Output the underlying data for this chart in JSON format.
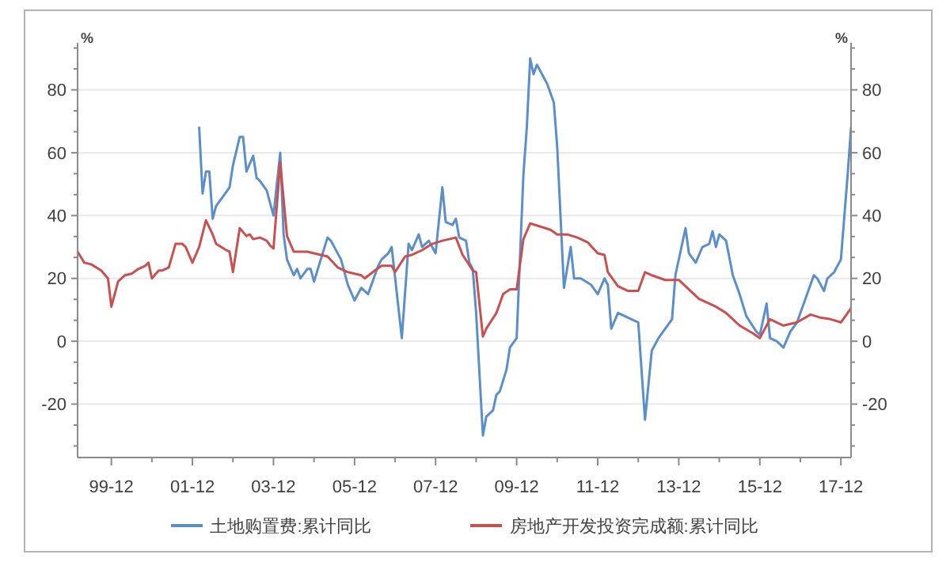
{
  "chart_data": {
    "type": "line",
    "ylabel": "%",
    "y2label": "%",
    "xlim": [
      "1999-02",
      "2018-03"
    ],
    "xticks": [
      {
        "value": "1999-12",
        "label": "99-12"
      },
      {
        "value": "2000-12",
        "label": null
      },
      {
        "value": "2001-12",
        "label": "01-12"
      },
      {
        "value": "2002-12",
        "label": null
      },
      {
        "value": "2003-12",
        "label": "03-12"
      },
      {
        "value": "2004-12",
        "label": null
      },
      {
        "value": "2005-12",
        "label": "05-12"
      },
      {
        "value": "2006-12",
        "label": null
      },
      {
        "value": "2007-12",
        "label": "07-12"
      },
      {
        "value": "2008-12",
        "label": null
      },
      {
        "value": "2009-12",
        "label": "09-12"
      },
      {
        "value": "2010-12",
        "label": null
      },
      {
        "value": "2011-12",
        "label": "11-12"
      },
      {
        "value": "2012-12",
        "label": null
      },
      {
        "value": "2013-12",
        "label": "13-12"
      },
      {
        "value": "2014-12",
        "label": null
      },
      {
        "value": "2015-12",
        "label": "15-12"
      },
      {
        "value": "2016-12",
        "label": null
      },
      {
        "value": "2017-12",
        "label": "17-12"
      }
    ],
    "ylim": [
      -37,
      95
    ],
    "yticks": [
      {
        "value": -33.33,
        "label": null
      },
      {
        "value": -26.67,
        "label": null
      },
      -20,
      {
        "value": -13.33,
        "label": null
      },
      {
        "value": -6.67,
        "label": null
      },
      0,
      {
        "value": 6.67,
        "label": null
      },
      {
        "value": 13.33,
        "label": null
      },
      20,
      {
        "value": 26.67,
        "label": null
      },
      {
        "value": 33.33,
        "label": null
      },
      40,
      {
        "value": 46.67,
        "label": null
      },
      {
        "value": 53.33,
        "label": null
      },
      60,
      {
        "value": 66.67,
        "label": null
      },
      {
        "value": 73.33,
        "label": null
      },
      80,
      {
        "value": 86.67,
        "label": null
      },
      {
        "value": 93.33,
        "label": null
      }
    ],
    "y2lim": [
      -37,
      95
    ],
    "y2ticks": [
      {
        "value": -33.33,
        "label": null
      },
      {
        "value": -26.67,
        "label": null
      },
      -20,
      {
        "value": -13.33,
        "label": null
      },
      {
        "value": -6.67,
        "label": null
      },
      0,
      {
        "value": 6.67,
        "label": null
      },
      {
        "value": 13.33,
        "label": null
      },
      20,
      {
        "value": 26.67,
        "label": null
      },
      {
        "value": 33.33,
        "label": null
      },
      40,
      {
        "value": 46.67,
        "label": null
      },
      {
        "value": 53.33,
        "label": null
      },
      60,
      {
        "value": 66.67,
        "label": null
      },
      {
        "value": 73.33,
        "label": null
      },
      80,
      {
        "value": 86.67,
        "label": null
      },
      {
        "value": 93.33,
        "label": null
      }
    ],
    "grid": "y",
    "legend": "bottom",
    "series": [
      {
        "name": "土地购置费:累计同比",
        "color": "#5b8fc9",
        "x": [
          "2002-02",
          "2002-03",
          "2002-04",
          "2002-05",
          "2002-06",
          "2002-07",
          "2002-09",
          "2002-11",
          "2002-12",
          "2003-02",
          "2003-03",
          "2003-04",
          "2003-06",
          "2003-07",
          "2003-08",
          "2003-10",
          "2003-11",
          "2003-12",
          "2004-02",
          "2004-03",
          "2004-04",
          "2004-06",
          "2004-07",
          "2004-08",
          "2004-10",
          "2004-11",
          "2004-12",
          "2005-02",
          "2005-04",
          "2005-05",
          "2005-08",
          "2005-10",
          "2005-12",
          "2006-02",
          "2006-04",
          "2006-05",
          "2006-07",
          "2006-08",
          "2006-10",
          "2006-11",
          "2007-02",
          "2007-04",
          "2007-05",
          "2007-07",
          "2007-08",
          "2007-10",
          "2007-12",
          "2008-02",
          "2008-03",
          "2008-05",
          "2008-06",
          "2008-07",
          "2008-09",
          "2008-10",
          "2008-11",
          "2008-12",
          "2009-02",
          "2009-03",
          "2009-05",
          "2009-06",
          "2009-07",
          "2009-09",
          "2009-10",
          "2009-12",
          "2010-02",
          "2010-03",
          "2010-04",
          "2010-05",
          "2010-06",
          "2010-08",
          "2010-09",
          "2010-10",
          "2010-11",
          "2010-12",
          "2011-02",
          "2011-04",
          "2011-05",
          "2011-07",
          "2011-10",
          "2011-12",
          "2012-02",
          "2012-03",
          "2012-04",
          "2012-06",
          "2012-08",
          "2012-10",
          "2012-12",
          "2013-02",
          "2013-04",
          "2013-06",
          "2013-08",
          "2013-10",
          "2013-11",
          "2014-02",
          "2014-03",
          "2014-05",
          "2014-07",
          "2014-09",
          "2014-10",
          "2014-11",
          "2014-12",
          "2015-02",
          "2015-04",
          "2015-06",
          "2015-08",
          "2015-11",
          "2015-12",
          "2016-02",
          "2016-03",
          "2016-05",
          "2016-07",
          "2016-09",
          "2016-11",
          "2017-02",
          "2017-04",
          "2017-05",
          "2017-07",
          "2017-08",
          "2017-10",
          "2017-12",
          "2018-02",
          "2018-03"
        ],
        "values": [
          68,
          47,
          54,
          54,
          39,
          43,
          46,
          49,
          56,
          65,
          65,
          54,
          59,
          52,
          51,
          48,
          44,
          40,
          60,
          34,
          26,
          21,
          23,
          20,
          23,
          23,
          19,
          26,
          33,
          32,
          26,
          18,
          13,
          17,
          15,
          18,
          24,
          26,
          28,
          30,
          1,
          31,
          29,
          34,
          30,
          32,
          28,
          49,
          38,
          37,
          39,
          33,
          32,
          25,
          23,
          9,
          -30,
          -24,
          -22,
          -17,
          -16,
          -9,
          -2,
          1,
          53,
          68,
          90,
          85,
          88,
          84,
          82,
          79,
          76,
          62,
          17,
          30,
          20,
          20,
          18,
          15,
          20,
          18,
          4,
          9,
          8,
          7,
          6,
          -25,
          -3,
          1,
          4,
          7,
          21,
          36,
          28,
          25,
          30,
          31,
          35,
          30,
          34,
          32,
          21,
          15,
          8,
          3,
          2,
          12,
          1,
          0,
          -2,
          3,
          6,
          15,
          21,
          20,
          16,
          20,
          22,
          26,
          53,
          68
        ]
      },
      {
        "name": "房地产开发投资完成额:累计同比",
        "color": "#c9504f",
        "x": [
          "1999-02",
          "1999-04",
          "1999-06",
          "1999-09",
          "1999-11",
          "1999-12",
          "2000-02",
          "2000-04",
          "2000-06",
          "2000-08",
          "2000-10",
          "2000-11",
          "2000-12",
          "2001-02",
          "2001-03",
          "2001-05",
          "2001-07",
          "2001-09",
          "2001-10",
          "2001-12",
          "2002-02",
          "2002-04",
          "2002-06",
          "2002-07",
          "2002-10",
          "2002-11",
          "2002-12",
          "2003-02",
          "2003-04",
          "2003-05",
          "2003-06",
          "2003-08",
          "2003-10",
          "2003-11",
          "2003-12",
          "2004-02",
          "2004-04",
          "2004-06",
          "2004-10",
          "2004-12",
          "2005-04",
          "2005-07",
          "2005-10",
          "2006-02",
          "2006-03",
          "2006-06",
          "2006-08",
          "2006-11",
          "2006-12",
          "2007-03",
          "2007-05",
          "2007-08",
          "2007-11",
          "2008-02",
          "2008-06",
          "2008-08",
          "2008-11",
          "2008-12",
          "2009-02",
          "2009-03",
          "2009-06",
          "2009-08",
          "2009-10",
          "2009-12",
          "2010-02",
          "2010-04",
          "2010-07",
          "2010-10",
          "2010-12",
          "2011-03",
          "2011-06",
          "2011-09",
          "2011-12",
          "2012-02",
          "2012-03",
          "2012-06",
          "2012-09",
          "2012-12",
          "2013-02",
          "2013-04",
          "2013-08",
          "2013-12",
          "2014-02",
          "2014-06",
          "2014-11",
          "2015-02",
          "2015-06",
          "2015-10",
          "2015-12",
          "2016-03",
          "2016-07",
          "2016-11",
          "2017-03",
          "2017-06",
          "2017-09",
          "2017-12",
          "2018-03"
        ],
        "values": [
          28.5,
          25,
          24.5,
          22.5,
          20,
          11,
          19,
          21,
          21.5,
          23,
          24,
          25,
          20,
          22.5,
          22.5,
          23.5,
          31,
          31,
          30,
          25,
          30,
          38.5,
          34,
          31,
          29,
          28.5,
          22,
          36,
          33.5,
          34,
          32.5,
          33,
          32,
          30.5,
          29.5,
          57,
          33.5,
          28.5,
          28.5,
          28,
          27,
          23.5,
          22,
          21,
          20,
          22.5,
          24,
          24,
          22,
          27,
          27.5,
          29,
          31,
          32,
          33,
          27.5,
          22.5,
          22,
          1.5,
          4,
          9,
          15,
          16.5,
          16.5,
          32.5,
          37.5,
          36.5,
          35.5,
          34,
          34,
          33,
          31.5,
          28,
          27.5,
          22,
          17.5,
          16,
          16,
          22,
          21,
          19.5,
          19.5,
          17.5,
          13.5,
          11,
          9,
          5,
          2.5,
          1,
          7,
          5,
          6,
          8.5,
          7.5,
          7,
          6,
          10.5
        ]
      }
    ]
  }
}
